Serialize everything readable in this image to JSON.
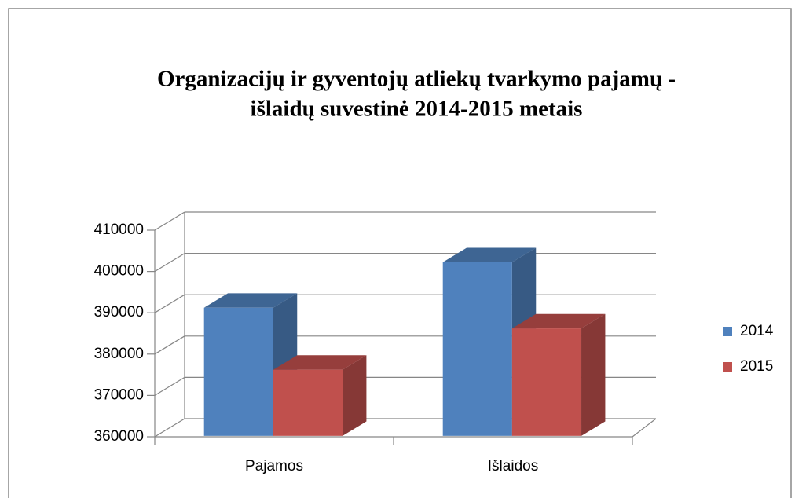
{
  "chart_data": {
    "type": "bar3d",
    "title": [
      "Organizacijų ir gyventojų atliekų tvarkymo pajamų -",
      "išlaidų suvestinė 2014-2015 metais"
    ],
    "categories": [
      "Pajamos",
      "Išlaidos"
    ],
    "series": [
      {
        "name": "2014",
        "color": "#4f81bd",
        "values": [
          391000,
          402000
        ]
      },
      {
        "name": "2015",
        "color": "#c0504d",
        "values": [
          376000,
          386000
        ]
      }
    ],
    "ylim": [
      360000,
      410000
    ],
    "yticks": [
      360000,
      370000,
      380000,
      390000,
      400000,
      410000
    ],
    "grid": true,
    "legend": "right"
  }
}
